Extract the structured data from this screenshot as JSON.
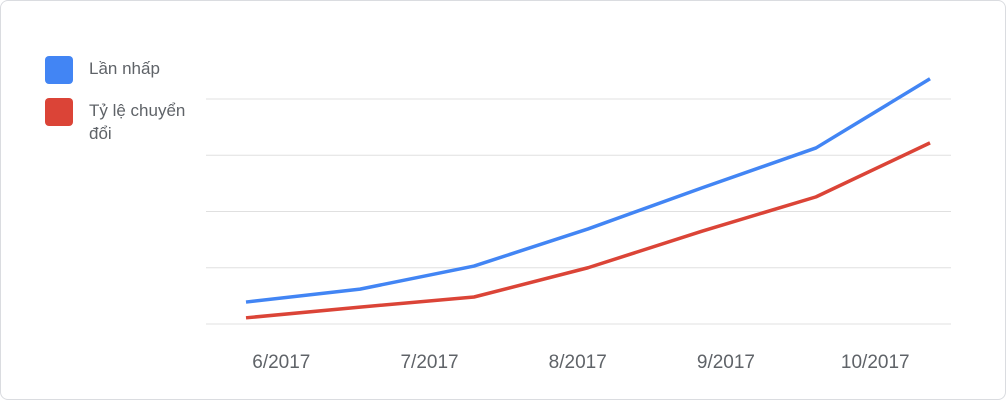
{
  "chart_data": {
    "type": "line",
    "x": [
      0,
      1,
      2,
      3,
      4,
      5,
      6
    ],
    "xlim": [
      0,
      6
    ],
    "xticks": [
      {
        "value": 0.31,
        "label": "6/2017"
      },
      {
        "value": 1.61,
        "label": "7/2017"
      },
      {
        "value": 2.91,
        "label": "8/2017"
      },
      {
        "value": 4.21,
        "label": "9/2017"
      },
      {
        "value": 5.52,
        "label": "10/2017"
      }
    ],
    "ylim": [
      0,
      4
    ],
    "yticks": [
      0,
      1,
      2,
      3,
      4
    ],
    "grid": true,
    "legend": "left",
    "series": [
      {
        "name": "Lần nhấp",
        "color": "#4285f4",
        "values": [
          0.39,
          0.62,
          1.03,
          1.69,
          2.42,
          3.13,
          4.36
        ]
      },
      {
        "name": "Tỷ lệ chuyển đổi",
        "color": "#db4437",
        "values": [
          0.11,
          0.3,
          0.48,
          1.0,
          1.65,
          2.26,
          3.22
        ]
      }
    ]
  }
}
